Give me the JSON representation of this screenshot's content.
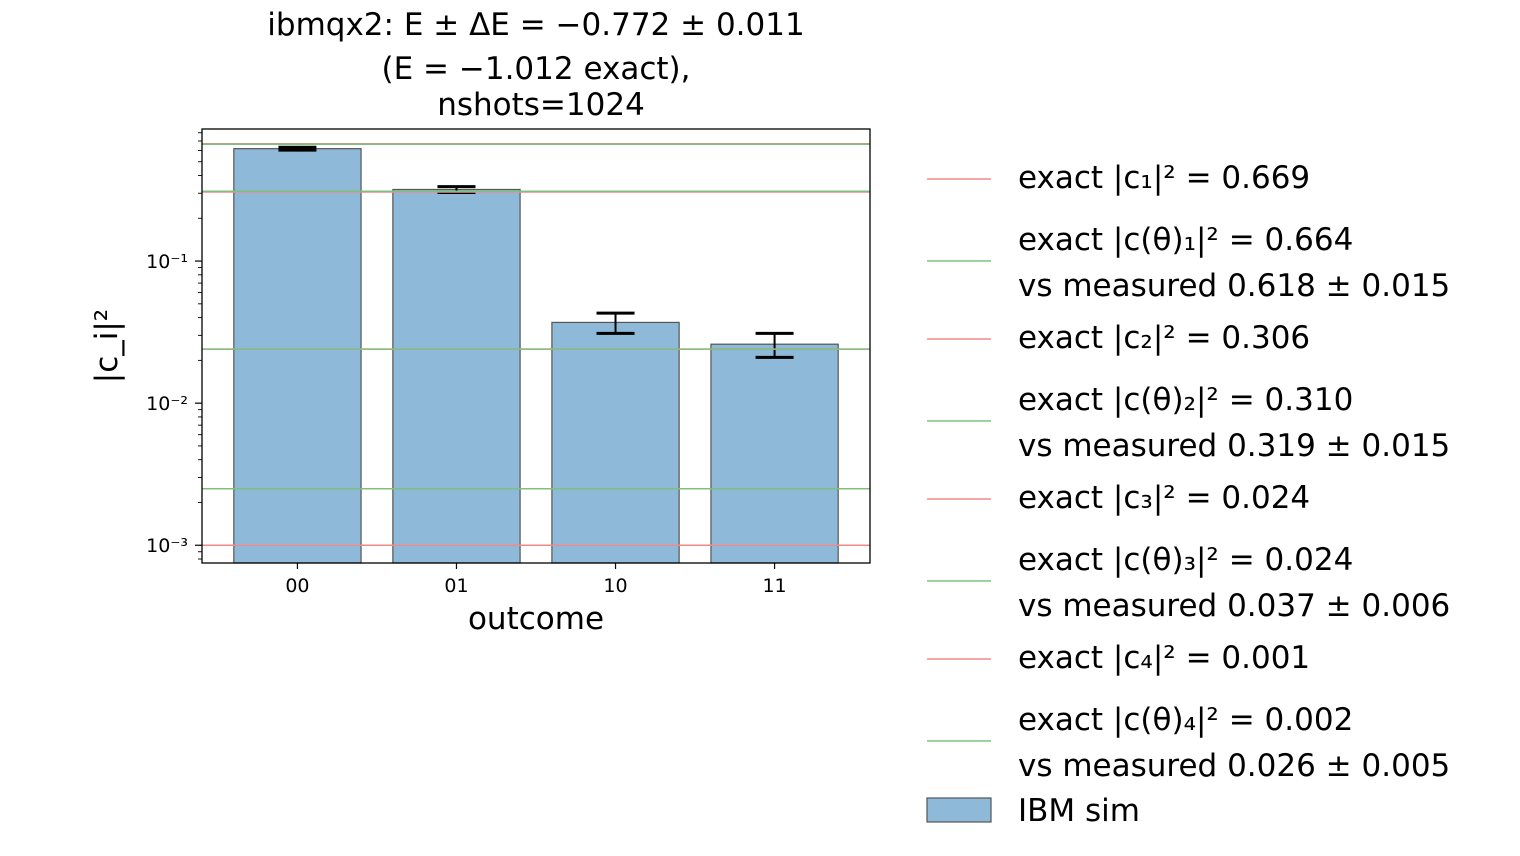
{
  "chart_data": {
    "type": "bar",
    "title_lines": [
      "ibmqx2: E ± ΔE = −0.772 ± 0.011",
      "(E = −1.012 exact),",
      "nshots=1024"
    ],
    "xlabel": "outcome",
    "ylabel": "|c_i|²",
    "yscale": "log",
    "ylim": [
      0.00075,
      0.85
    ],
    "yticks": [
      {
        "value": 0.1,
        "label": "10⁻¹"
      },
      {
        "value": 0.01,
        "label": "10⁻²"
      },
      {
        "value": 0.001,
        "label": "10⁻³"
      }
    ],
    "categories": [
      "00",
      "01",
      "10",
      "11"
    ],
    "series": [
      {
        "name": "IBM sim",
        "values": [
          0.618,
          0.319,
          0.037,
          0.026
        ],
        "errors": [
          0.015,
          0.015,
          0.006,
          0.005
        ],
        "color": "#8fb9d9"
      }
    ],
    "reference_lines": [
      {
        "label": "exact |c₁|² = 0.669",
        "value": 0.669,
        "color": "#f08a8a"
      },
      {
        "label": "exact |c(θ)₁|² = 0.664",
        "label2": "vs measured 0.618 ± 0.015",
        "value": 0.664,
        "color": "#7fbf7f"
      },
      {
        "label": "exact |c₂|² = 0.306",
        "value": 0.306,
        "color": "#f08a8a"
      },
      {
        "label": "exact |c(θ)₂|² = 0.310",
        "label2": "vs measured 0.319 ± 0.015",
        "value": 0.31,
        "color": "#7fbf7f"
      },
      {
        "label": "exact |c₃|² = 0.024",
        "value": 0.024,
        "color": "#f08a8a"
      },
      {
        "label": "exact |c(θ)₃|² = 0.024",
        "label2": "vs measured 0.037 ± 0.006",
        "value": 0.024,
        "color": "#7fbf7f"
      },
      {
        "label": "exact |c₄|² = 0.001",
        "value": 0.001,
        "color": "#f08a8a"
      },
      {
        "label": "exact |c(θ)₄|² = 0.002",
        "label2": "vs measured 0.026 ± 0.005",
        "value": 0.0025,
        "color": "#7fbf7f"
      }
    ],
    "legend_placement": "right, outside plot",
    "grid": false
  }
}
